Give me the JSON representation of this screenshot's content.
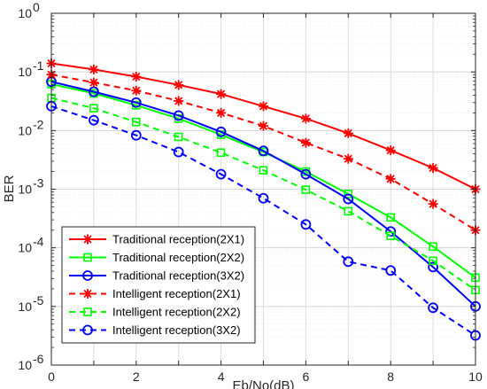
{
  "chart_data": {
    "type": "line",
    "xlabel": "Eb/No(dB)",
    "ylabel": "BER",
    "xlim": [
      0,
      10
    ],
    "ylim": [
      1e-06,
      1
    ],
    "yscale": "log",
    "grid": true,
    "legend_position": "bottom-left",
    "x_ticks": [
      "0",
      "2",
      "4",
      "6",
      "8",
      "10"
    ],
    "y_ticks": [
      {
        "exp": -6,
        "base": "10",
        "power": "-6"
      },
      {
        "exp": -5,
        "base": "10",
        "power": "-5"
      },
      {
        "exp": -4,
        "base": "10",
        "power": "-4"
      },
      {
        "exp": -3,
        "base": "10",
        "power": "-3"
      },
      {
        "exp": -2,
        "base": "10",
        "power": "-2"
      },
      {
        "exp": -1,
        "base": "10",
        "power": "-1"
      },
      {
        "exp": 0,
        "base": "10",
        "power": "0"
      }
    ],
    "x": [
      0,
      1,
      2,
      3,
      4,
      5,
      6,
      7,
      8,
      9,
      10
    ],
    "series": [
      {
        "name": "Traditional reception(2X1)",
        "color": "#ff0000",
        "line": "solid",
        "marker": "asterisk",
        "values": [
          0.14,
          0.11,
          0.083,
          0.06,
          0.042,
          0.026,
          0.016,
          0.009,
          0.0046,
          0.0023,
          0.001
        ]
      },
      {
        "name": "Traditional reception(2X2)",
        "color": "#00ff00",
        "line": "solid",
        "marker": "square",
        "values": [
          0.062,
          0.043,
          0.027,
          0.016,
          0.0085,
          0.0043,
          0.002,
          0.00083,
          0.00033,
          0.000105,
          3.1e-05
        ]
      },
      {
        "name": "Traditional reception(3X2)",
        "color": "#0000ff",
        "line": "solid",
        "marker": "circle",
        "values": [
          0.068,
          0.046,
          0.03,
          0.018,
          0.0095,
          0.0045,
          0.0018,
          0.00068,
          0.00019,
          4.7e-05,
          1e-05
        ]
      },
      {
        "name": "Intelligent reception(2X1)",
        "color": "#ff0000",
        "line": "dashed",
        "marker": "asterisk",
        "values": [
          0.09,
          0.066,
          0.048,
          0.032,
          0.02,
          0.012,
          0.0062,
          0.0033,
          0.0015,
          0.00056,
          0.0002
        ]
      },
      {
        "name": "Intelligent reception(2X2)",
        "color": "#00ff00",
        "line": "dashed",
        "marker": "square",
        "values": [
          0.036,
          0.024,
          0.014,
          0.0078,
          0.0042,
          0.0021,
          0.00098,
          0.00042,
          0.00016,
          6e-05,
          1.9e-05
        ]
      },
      {
        "name": "Intelligent reception(3X2)",
        "color": "#0000ff",
        "line": "dashed",
        "marker": "circle",
        "values": [
          0.026,
          0.015,
          0.0083,
          0.0043,
          0.0018,
          0.0007,
          0.00025,
          5.8e-05,
          4.1e-05,
          9.5e-06,
          3.2e-06
        ]
      }
    ]
  }
}
